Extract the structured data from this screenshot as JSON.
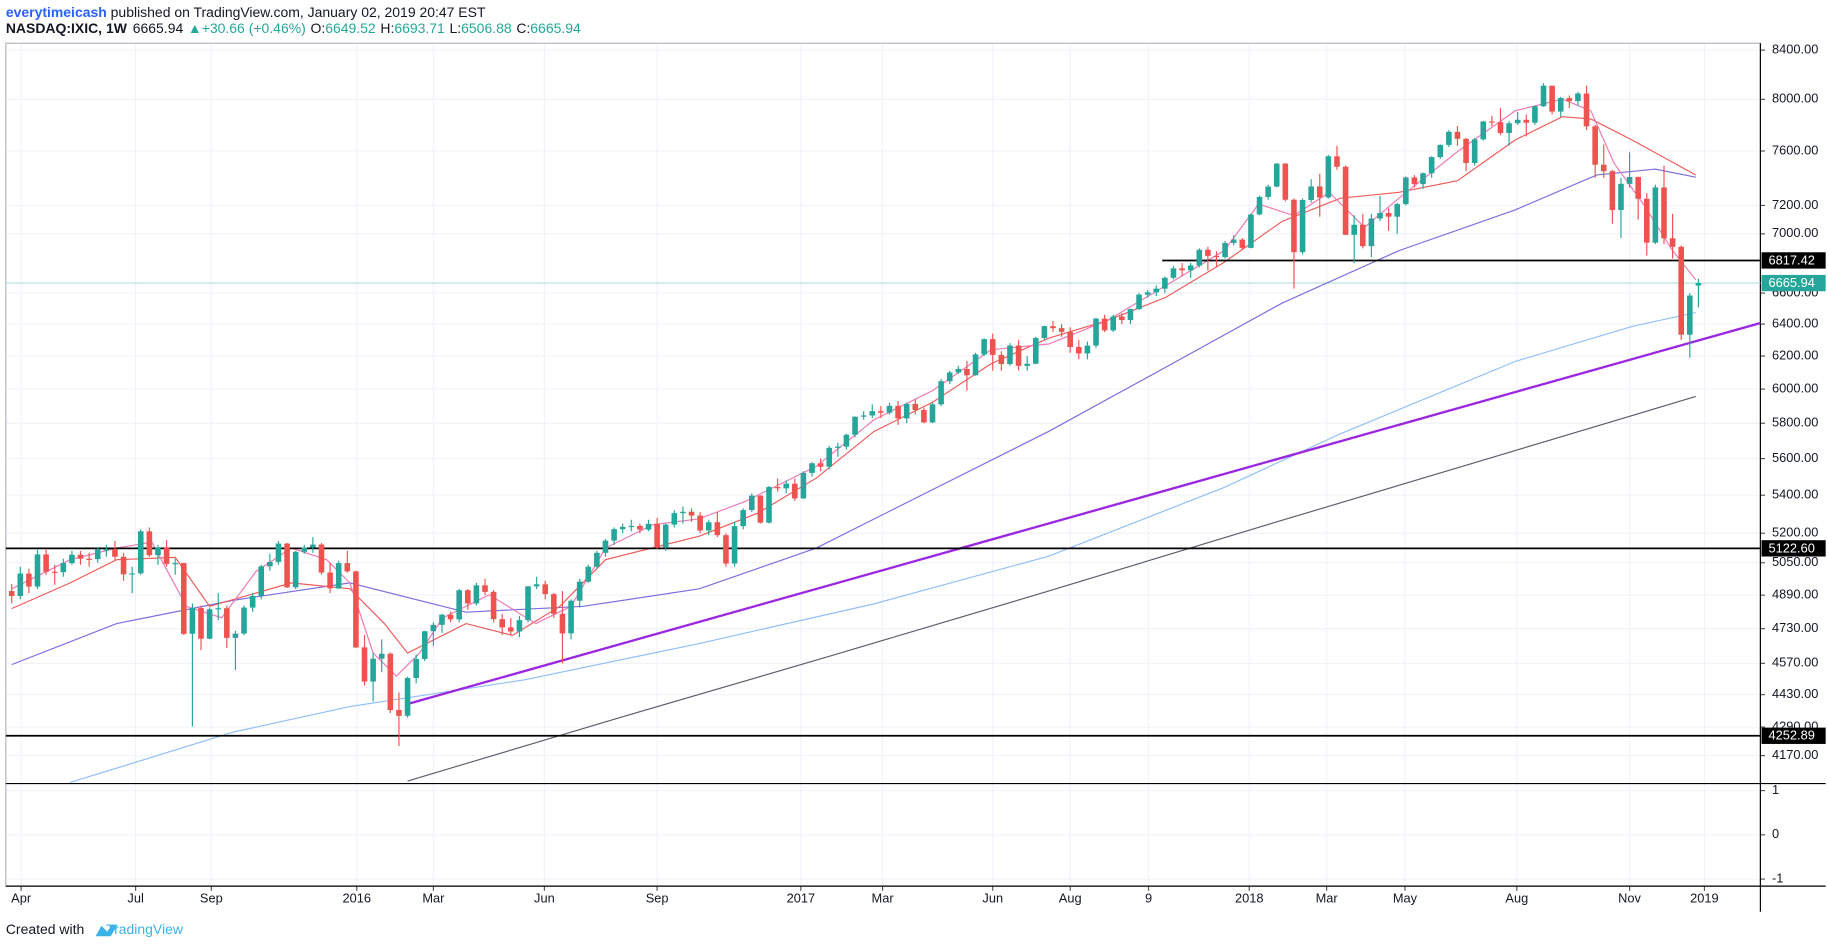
{
  "header": {
    "user": "everytimeicash",
    "published": " published on TradingView.com, January 02, 2019 20:47 EST",
    "symbol": "NASDAQ:IXIC, 1W",
    "last": "6665.94",
    "change": "▲+30.66 (+0.46%)",
    "ohlc": [
      {
        "key": "O:",
        "value": "6649.52"
      },
      {
        "key": "H:",
        "value": "6693.71"
      },
      {
        "key": "L:",
        "value": "6506.88"
      },
      {
        "key": "C:",
        "value": "6665.94"
      }
    ]
  },
  "footer": {
    "text": "Created with",
    "brand": "TradingView"
  },
  "chart_data": {
    "type": "candlestick",
    "log_scale": true,
    "grid": true,
    "up_color": "#26a69a",
    "down_color": "#ef5350",
    "xlim": [
      -0.68,
      203.2
    ],
    "ylim": [
      4056,
      8458
    ],
    "xticks": [
      {
        "value": 1.1,
        "label": "Apr"
      },
      {
        "value": 14.4,
        "label": "Jul"
      },
      {
        "value": 23.2,
        "label": "Sep"
      },
      {
        "value": 40.1,
        "label": "2016"
      },
      {
        "value": 49,
        "label": "Mar"
      },
      {
        "value": 61.9,
        "label": "Jun"
      },
      {
        "value": 75,
        "label": "Sep"
      },
      {
        "value": 91.7,
        "label": "2017"
      },
      {
        "value": 101.2,
        "label": "Mar"
      },
      {
        "value": 114,
        "label": "Jun"
      },
      {
        "value": 123,
        "label": "Aug"
      },
      {
        "value": 132.1,
        "label": "9"
      },
      {
        "value": 143.8,
        "label": "2018"
      },
      {
        "value": 152.8,
        "label": "Mar"
      },
      {
        "value": 161.9,
        "label": "May"
      },
      {
        "value": 174.9,
        "label": "Aug"
      },
      {
        "value": 188,
        "label": "Nov"
      },
      {
        "value": 196.7,
        "label": "2019"
      }
    ],
    "yticks": [
      {
        "value": 8400,
        "label": "8400.00"
      },
      {
        "value": 8000,
        "label": "8000.00"
      },
      {
        "value": 7600,
        "label": "7600.00"
      },
      {
        "value": 7200,
        "label": "7200.00"
      },
      {
        "value": 7000,
        "label": "7000.00"
      },
      {
        "value": 6600,
        "label": "6600.00"
      },
      {
        "value": 6400,
        "label": "6400.00"
      },
      {
        "value": 6200,
        "label": "6200.00"
      },
      {
        "value": 6000,
        "label": "6000.00"
      },
      {
        "value": 5800,
        "label": "5800.00"
      },
      {
        "value": 5600,
        "label": "5600.00"
      },
      {
        "value": 5400,
        "label": "5400.00"
      },
      {
        "value": 5200,
        "label": "5200.00"
      },
      {
        "value": 5050,
        "label": "5050.00"
      },
      {
        "value": 4890,
        "label": "4890.00"
      },
      {
        "value": 4730,
        "label": "4730.00"
      },
      {
        "value": 4570,
        "label": "4570.00"
      },
      {
        "value": 4430,
        "label": "4430.00"
      },
      {
        "value": 4290,
        "label": "4290.00"
      },
      {
        "value": 4170,
        "label": "4170.00"
      }
    ],
    "open": [
      4910,
      4886,
      4996,
      4932,
      5092,
      5005,
      5003,
      5048,
      5090,
      5070,
      5068,
      5117,
      5117,
      5080,
      4992,
      4997,
      5210,
      5088,
      5128,
      5044,
      5048,
      4706,
      4828,
      4683,
      4822,
      4827,
      4687,
      4707,
      4830,
      4886,
      5032,
      5054,
      5147,
      4928,
      5105,
      5127,
      5142,
      5001,
      4923,
      5048,
      5007,
      4643,
      4488,
      4591,
      4614,
      4363,
      4338,
      4504,
      4590,
      4718,
      4748,
      4796,
      4774,
      4914,
      4850,
      4938,
      4906,
      4775,
      4736,
      4717,
      4770,
      4933,
      4943,
      4895,
      4800,
      4708,
      4863,
      4956,
      5030,
      5100,
      5162,
      5221,
      5233,
      5238,
      5219,
      5249,
      5126,
      5245,
      5305,
      5312,
      5292,
      5214,
      5257,
      5190,
      5046,
      5237,
      5321,
      5398,
      5255,
      5444,
      5437,
      5462,
      5383,
      5521,
      5574,
      5555,
      5660,
      5667,
      5734,
      5838,
      5845,
      5870,
      5861,
      5901,
      5828,
      5912,
      5877,
      5805,
      5910,
      6047,
      6100,
      6121,
      6083,
      6210,
      6305,
      6207,
      6151,
      6265,
      6140,
      6153,
      6312,
      6387,
      6374,
      6351,
      6256,
      6216,
      6265,
      6435,
      6360,
      6448,
      6426,
      6496,
      6590,
      6605,
      6629,
      6701,
      6764,
      6751,
      6783,
      6890,
      6848,
      6840,
      6937,
      6960,
      6903,
      7136,
      7261,
      7336,
      7505,
      7241,
      6874,
      7239,
      7337,
      7257,
      7560,
      7482,
      6993,
      7063,
      6915,
      7107,
      7146,
      7120,
      7210,
      7403,
      7354,
      7434,
      7554,
      7646,
      7746,
      7692,
      7510,
      7688,
      7826,
      7820,
      7737,
      7812,
      7839,
      7816,
      7945,
      8109,
      7903,
      8010,
      7986,
      8046,
      7788,
      7497,
      7449,
      7167,
      7356,
      7406,
      7248,
      6939,
      7330,
      6969,
      6910,
      6333,
      6649.52
    ],
    "high": [
      4945,
      5030,
      5020,
      5115,
      5120,
      5040,
      5070,
      5110,
      5110,
      5100,
      5130,
      5140,
      5160,
      5100,
      5030,
      5220,
      5230,
      5140,
      5165,
      5070,
      5050,
      4850,
      4840,
      4830,
      4900,
      4840,
      4720,
      4840,
      4900,
      5040,
      5095,
      5160,
      5150,
      5110,
      5140,
      5180,
      5150,
      5050,
      5060,
      5110,
      5010,
      4700,
      4620,
      4680,
      4620,
      4440,
      4510,
      4610,
      4720,
      4760,
      4800,
      4810,
      4920,
      4920,
      4950,
      4970,
      4915,
      4800,
      4780,
      4790,
      4935,
      4980,
      4960,
      4900,
      4910,
      4870,
      4970,
      5040,
      5110,
      5170,
      5230,
      5250,
      5270,
      5250,
      5270,
      5280,
      5250,
      5320,
      5340,
      5330,
      5310,
      5270,
      5310,
      5200,
      5260,
      5330,
      5410,
      5400,
      5450,
      5490,
      5480,
      5490,
      5530,
      5580,
      5600,
      5670,
      5690,
      5740,
      5840,
      5870,
      5910,
      5900,
      5920,
      5930,
      5920,
      5940,
      5890,
      5920,
      6060,
      6110,
      6140,
      6170,
      6220,
      6310,
      6340,
      6230,
      6280,
      6300,
      6200,
      6320,
      6390,
      6420,
      6400,
      6380,
      6300,
      6290,
      6440,
      6460,
      6460,
      6470,
      6500,
      6600,
      6620,
      6650,
      6710,
      6780,
      6800,
      6800,
      6900,
      6910,
      6880,
      6950,
      6990,
      6970,
      7140,
      7270,
      7350,
      7510,
      7510,
      7250,
      7250,
      7390,
      7430,
      7570,
      7640,
      7490,
      7130,
      7140,
      7140,
      7270,
      7180,
      7220,
      7410,
      7420,
      7440,
      7560,
      7650,
      7760,
      7790,
      7700,
      7700,
      7830,
      7870,
      7930,
      7830,
      7900,
      7880,
      7950,
      8130,
      8110,
      8020,
      8030,
      8060,
      8110,
      7800,
      7650,
      7460,
      7400,
      7590,
      7410,
      7290,
      7350,
      7490,
      7140,
      6920,
      6600,
      6693.71
    ],
    "low": [
      4850,
      4870,
      4900,
      4920,
      4990,
      4940,
      4980,
      5040,
      5040,
      5030,
      5050,
      5080,
      5060,
      4960,
      4900,
      4990,
      5080,
      5040,
      5030,
      4990,
      4700,
      4292,
      4630,
      4680,
      4770,
      4640,
      4540,
      4700,
      4810,
      4870,
      5010,
      5040,
      4925,
      4920,
      5095,
      5100,
      4990,
      4900,
      4920,
      5000,
      4640,
      4470,
      4400,
      4530,
      4350,
      4210,
      4330,
      4480,
      4580,
      4650,
      4710,
      4760,
      4760,
      4820,
      4840,
      4890,
      4760,
      4700,
      4700,
      4690,
      4760,
      4920,
      4870,
      4780,
      4570,
      4680,
      4830,
      4950,
      5020,
      5080,
      5140,
      5200,
      5210,
      5200,
      5210,
      5120,
      5110,
      5230,
      5250,
      5260,
      5200,
      5190,
      5180,
      5030,
      5030,
      5220,
      5310,
      5250,
      5250,
      5420,
      5410,
      5370,
      5380,
      5500,
      5530,
      5540,
      5610,
      5650,
      5720,
      5820,
      5830,
      5830,
      5850,
      5790,
      5800,
      5850,
      5800,
      5800,
      5900,
      6030,
      6090,
      5990,
      6080,
      6200,
      6110,
      6110,
      6140,
      6110,
      6110,
      6150,
      6300,
      6350,
      6320,
      6220,
      6180,
      6180,
      6250,
      6350,
      6350,
      6400,
      6400,
      6490,
      6570,
      6580,
      6600,
      6690,
      6710,
      6700,
      6770,
      6750,
      6770,
      6830,
      6920,
      6890,
      6900,
      7130,
      7240,
      7330,
      7230,
      6630,
      6860,
      7220,
      7120,
      7250,
      7460,
      6990,
      6800,
      6900,
      6840,
      7090,
      7020,
      7000,
      7200,
      7330,
      7320,
      7400,
      7540,
      7630,
      7640,
      7450,
      7490,
      7680,
      7790,
      7720,
      7640,
      7800,
      7710,
      7800,
      7940,
      7880,
      7860,
      7930,
      7950,
      7760,
      7400,
      7400,
      7070,
      6970,
      7330,
      7100,
      6850,
      6930,
      6930,
      6830,
      6300,
      6190,
      6506.88
    ],
    "close": [
      4886,
      4996,
      4932,
      5092,
      5005,
      5003,
      5048,
      5090,
      5070,
      5068,
      5117,
      5117,
      5080,
      4992,
      4997,
      5210,
      5088,
      5128,
      5044,
      5048,
      4706,
      4828,
      4683,
      4822,
      4827,
      4687,
      4707,
      4830,
      4886,
      5032,
      5054,
      5147,
      4928,
      5105,
      5127,
      5142,
      5001,
      4923,
      5048,
      5007,
      4643,
      4488,
      4591,
      4614,
      4363,
      4338,
      4504,
      4590,
      4718,
      4748,
      4796,
      4774,
      4914,
      4850,
      4938,
      4906,
      4775,
      4736,
      4717,
      4770,
      4933,
      4943,
      4895,
      4800,
      4708,
      4863,
      4956,
      5030,
      5100,
      5162,
      5221,
      5233,
      5238,
      5219,
      5249,
      5126,
      5245,
      5305,
      5312,
      5292,
      5214,
      5257,
      5190,
      5046,
      5237,
      5321,
      5398,
      5255,
      5444,
      5437,
      5462,
      5383,
      5521,
      5574,
      5555,
      5660,
      5667,
      5734,
      5838,
      5845,
      5870,
      5861,
      5901,
      5828,
      5912,
      5877,
      5805,
      5910,
      6047,
      6100,
      6121,
      6083,
      6210,
      6305,
      6207,
      6151,
      6265,
      6140,
      6153,
      6312,
      6387,
      6374,
      6351,
      6256,
      6216,
      6265,
      6435,
      6360,
      6448,
      6426,
      6496,
      6590,
      6605,
      6629,
      6701,
      6764,
      6751,
      6783,
      6890,
      6848,
      6840,
      6937,
      6960,
      6903,
      7136,
      7261,
      7336,
      7505,
      7241,
      6874,
      7239,
      7337,
      7257,
      7560,
      7482,
      6993,
      7063,
      6915,
      7107,
      7146,
      7120,
      7210,
      7403,
      7354,
      7434,
      7554,
      7646,
      7746,
      7692,
      7510,
      7688,
      7826,
      7820,
      7737,
      7812,
      7839,
      7816,
      7945,
      8109,
      7903,
      8010,
      7986,
      8046,
      7788,
      7497,
      7449,
      7167,
      7356,
      7406,
      7248,
      6939,
      7330,
      6969,
      6910,
      6333,
      6584,
      6665.94
    ],
    "lines": [
      {
        "color": "#5d606b",
        "x": [
          46,
          70,
          95,
          120,
          145,
          170,
          195.7
        ],
        "values": [
          4066,
          4323,
          4602,
          4904,
          5232,
          5577,
          5956
        ]
      },
      {
        "color": "#90bff9",
        "x": [
          6.8,
          25.7,
          39.3,
          59.6,
          79.9,
          100.2,
          120.5,
          140.9,
          154.4,
          174.7,
          188.3,
          195.7
        ],
        "values": [
          4060,
          4268,
          4378,
          4496,
          4661,
          4848,
          5083,
          5442,
          5740,
          6167,
          6385,
          6474
        ]
      },
      {
        "color": "#7b6fe0",
        "x": [
          0,
          12.2,
          25.7,
          39.3,
          52.8,
          66.4,
          79.9,
          93.5,
          107,
          120.5,
          134.1,
          147.6,
          161.2,
          174.7,
          184.2,
          191,
          195.7
        ],
        "values": [
          4564,
          4754,
          4865,
          4950,
          4808,
          4836,
          4921,
          5124,
          5430,
          5753,
          6132,
          6534,
          6884,
          7168,
          7421,
          7464,
          7405
        ]
      },
      {
        "color": "#f05a5a",
        "x": [
          0,
          6.8,
          12.2,
          19,
          23,
          32.5,
          39.3,
          43.3,
          46,
          52.8,
          58.2,
          63.7,
          69,
          79.9,
          86.7,
          93.5,
          100.2,
          107,
          113.8,
          120.5,
          127.3,
          134.1,
          140.9,
          147.6,
          154.4,
          161.2,
          168,
          174.7,
          180.2,
          183.5,
          188.3,
          195.7
        ],
        "values": [
          4825,
          4950,
          5065,
          5077,
          4836,
          4950,
          4921,
          4754,
          4617,
          4754,
          4699,
          4836,
          5065,
          5185,
          5305,
          5493,
          5753,
          5922,
          6153,
          6311,
          6422,
          6572,
          6805,
          7086,
          7252,
          7294,
          7379,
          7683,
          7863,
          7845,
          7683,
          7421
        ]
      },
      {
        "color": "#f178b6",
        "x": [
          0,
          6.8,
          12.2,
          16.3,
          20.3,
          24.4,
          28.4,
          32.5,
          36.6,
          39.3,
          42,
          44.7,
          47.4,
          50.1,
          55.5,
          60.9,
          65,
          69,
          74.5,
          79.9,
          85.3,
          93.5,
          100.2,
          107,
          113.8,
          120.5,
          127.3,
          134.1,
          140.9,
          144.9,
          149,
          153.1,
          157.2,
          161.2,
          168,
          174.7,
          180.2,
          183.5,
          186.2,
          189.6,
          193,
          195.7
        ],
        "values": [
          4921,
          5065,
          5124,
          5154,
          4836,
          4781,
          5007,
          5124,
          5065,
          4950,
          4617,
          4512,
          4617,
          4781,
          4892,
          4754,
          4836,
          5124,
          5244,
          5275,
          5368,
          5557,
          5820,
          5991,
          6239,
          6275,
          6422,
          6649,
          6884,
          7210,
          7127,
          7294,
          7045,
          7252,
          7595,
          7909,
          8002,
          7909,
          7508,
          7210,
          6884,
          6687
        ]
      }
    ],
    "trendline": {
      "color": "#9c27e0",
      "x": [
        46,
        203.2
      ],
      "values": [
        4389,
        6407
      ]
    },
    "levels": [
      {
        "value": 6817.42,
        "label": "6817.42",
        "start": 133.7,
        "color": "#000000"
      },
      {
        "value": 5122.6,
        "label": "5122.60",
        "color": "#000000"
      },
      {
        "value": 4252.89,
        "label": "4252.89",
        "color": "#000000"
      }
    ],
    "last_price": {
      "value": 6665.94,
      "label": "6665.94",
      "color": "#26a69a",
      "line_color": "#b2dfdb"
    },
    "indicator": {
      "ylim": [
        -1.16,
        1.16
      ],
      "yticks": [
        1,
        0,
        -1
      ]
    }
  }
}
